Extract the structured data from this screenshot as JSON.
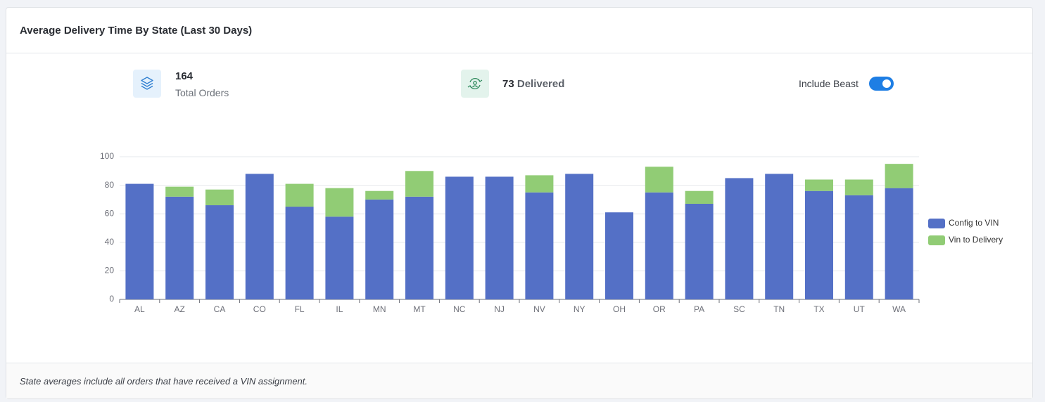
{
  "header": {
    "title": "Average Delivery Time By State (Last 30 Days)"
  },
  "stats": [
    {
      "value": 164,
      "label": "Total Orders"
    },
    {
      "value": 73,
      "label": "Delivered"
    }
  ],
  "toggle": {
    "label": "Include Beast",
    "on": true
  },
  "footer": {
    "note": "State averages include all orders that have received a VIN assignment."
  },
  "chart_data": {
    "type": "stacked-bar",
    "categories": [
      "AL",
      "AZ",
      "CA",
      "CO",
      "FL",
      "IL",
      "MN",
      "MT",
      "NC",
      "NJ",
      "NV",
      "NY",
      "OH",
      "OR",
      "PA",
      "SC",
      "TN",
      "TX",
      "UT",
      "WA"
    ],
    "series": [
      {
        "name": "Config to VIN",
        "color": "#5470c6",
        "values": [
          81,
          72,
          66,
          88,
          65,
          58,
          70,
          72,
          86,
          86,
          75,
          88,
          61,
          75,
          67,
          85,
          88,
          76,
          73,
          78
        ]
      },
      {
        "name": "Vin to Delivery",
        "color": "#91cc75",
        "values": [
          0,
          7,
          11,
          0,
          16,
          20,
          6,
          18,
          0,
          0,
          12,
          0,
          0,
          18,
          9,
          0,
          0,
          8,
          11,
          17
        ]
      }
    ],
    "ylim": [
      0,
      100
    ],
    "yticks": [
      0,
      20,
      40,
      60,
      80,
      100
    ],
    "grid": true,
    "legend": "right"
  }
}
